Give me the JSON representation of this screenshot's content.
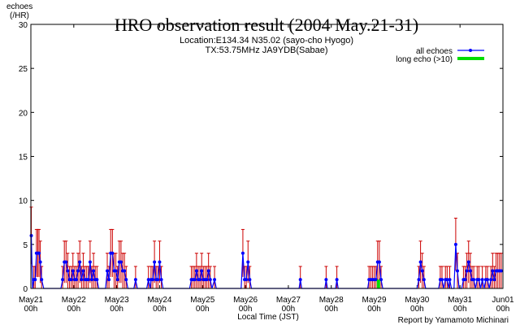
{
  "chart_data": {
    "type": "line",
    "title": "HRO observation result (2004 May.21-31)",
    "subtitle_1": "Location:E134.34 N35.02 (sayo-cho Hyogo)",
    "subtitle_2": "TX:53.75MHz JA9YDB(Sabae)",
    "ylabel_line1": "echoes",
    "ylabel_line2": "(/HR)",
    "xlabel": "Local Time (JST)",
    "credit": "Report by Yamamoto Michinari",
    "ylim": [
      0,
      30
    ],
    "yticks": [
      "0",
      "5",
      "10",
      "15",
      "20",
      "25",
      "30"
    ],
    "xlim_days": [
      0,
      11
    ],
    "xticks": [
      {
        "day": 0,
        "line1": "May21",
        "line2": "00h"
      },
      {
        "day": 1,
        "line1": "May22",
        "line2": "00h"
      },
      {
        "day": 2,
        "line1": "May23",
        "line2": "00h"
      },
      {
        "day": 3,
        "line1": "May24",
        "line2": "00h"
      },
      {
        "day": 4,
        "line1": "May25",
        "line2": "00h"
      },
      {
        "day": 5,
        "line1": "May26",
        "line2": "00h"
      },
      {
        "day": 6,
        "line1": "May27",
        "line2": "00h"
      },
      {
        "day": 7,
        "line1": "May28",
        "line2": "00h"
      },
      {
        "day": 8,
        "line1": "May29",
        "line2": "00h"
      },
      {
        "day": 9,
        "line1": "May30",
        "line2": "00h"
      },
      {
        "day": 10,
        "line1": "May31",
        "line2": "00h"
      },
      {
        "day": 11,
        "line1": "Jun01",
        "line2": "00h"
      }
    ],
    "legend": [
      {
        "name": "all echoes",
        "color": "#0000ff"
      },
      {
        "name": "long echo (>10)",
        "color": "#00dd00"
      }
    ],
    "legend_position": "top-right",
    "colors": {
      "line": "#0000ff",
      "error": "#cc0000",
      "long": "#00dd00",
      "axis": "#000000"
    },
    "series": [
      {
        "name": "all echoes",
        "points": [
          [
            0.01,
            6
          ],
          [
            0.04,
            0
          ],
          [
            0.07,
            1
          ],
          [
            0.1,
            1
          ],
          [
            0.13,
            4
          ],
          [
            0.16,
            4
          ],
          [
            0.19,
            4
          ],
          [
            0.22,
            3
          ],
          [
            0.25,
            1
          ],
          [
            0.3,
            0
          ],
          [
            0.7,
            0
          ],
          [
            0.74,
            1
          ],
          [
            0.78,
            3
          ],
          [
            0.82,
            3
          ],
          [
            0.86,
            2
          ],
          [
            0.9,
            1
          ],
          [
            0.94,
            1
          ],
          [
            0.98,
            2
          ],
          [
            1.02,
            1
          ],
          [
            1.06,
            1
          ],
          [
            1.1,
            2
          ],
          [
            1.14,
            3
          ],
          [
            1.18,
            1
          ],
          [
            1.22,
            2
          ],
          [
            1.26,
            1
          ],
          [
            1.3,
            1
          ],
          [
            1.34,
            1
          ],
          [
            1.38,
            3
          ],
          [
            1.42,
            1
          ],
          [
            1.46,
            2
          ],
          [
            1.5,
            1
          ],
          [
            1.54,
            1
          ],
          [
            1.58,
            0
          ],
          [
            1.74,
            0
          ],
          [
            1.78,
            2
          ],
          [
            1.82,
            1
          ],
          [
            1.86,
            4
          ],
          [
            1.9,
            4
          ],
          [
            1.94,
            2
          ],
          [
            1.98,
            2
          ],
          [
            2.02,
            1
          ],
          [
            2.06,
            3
          ],
          [
            2.1,
            3
          ],
          [
            2.14,
            2
          ],
          [
            2.18,
            2
          ],
          [
            2.22,
            1
          ],
          [
            2.26,
            0
          ],
          [
            2.4,
            0
          ],
          [
            2.44,
            1
          ],
          [
            2.48,
            0
          ],
          [
            2.7,
            0
          ],
          [
            2.74,
            1
          ],
          [
            2.78,
            0
          ],
          [
            2.8,
            1
          ],
          [
            2.84,
            1
          ],
          [
            2.88,
            3
          ],
          [
            2.92,
            1
          ],
          [
            2.96,
            1
          ],
          [
            3.0,
            3
          ],
          [
            3.04,
            1
          ],
          [
            3.08,
            0
          ],
          [
            3.7,
            0
          ],
          [
            3.74,
            1
          ],
          [
            3.78,
            1
          ],
          [
            3.82,
            1
          ],
          [
            3.86,
            2
          ],
          [
            3.9,
            1
          ],
          [
            3.94,
            1
          ],
          [
            3.98,
            2
          ],
          [
            4.02,
            1
          ],
          [
            4.06,
            1
          ],
          [
            4.1,
            1
          ],
          [
            4.14,
            2
          ],
          [
            4.18,
            1
          ],
          [
            4.22,
            0
          ],
          [
            4.28,
            1
          ],
          [
            4.32,
            0
          ],
          [
            4.9,
            0
          ],
          [
            4.94,
            4
          ],
          [
            4.98,
            1
          ],
          [
            5.02,
            1
          ],
          [
            5.06,
            3
          ],
          [
            5.1,
            1
          ],
          [
            5.14,
            0
          ],
          [
            6.25,
            0
          ],
          [
            6.28,
            1
          ],
          [
            6.31,
            0
          ],
          [
            6.85,
            0
          ],
          [
            6.88,
            1
          ],
          [
            6.91,
            0
          ],
          [
            7.1,
            0
          ],
          [
            7.13,
            1
          ],
          [
            7.16,
            0
          ],
          [
            7.85,
            0
          ],
          [
            7.88,
            1
          ],
          [
            7.92,
            1
          ],
          [
            7.96,
            1
          ],
          [
            8.0,
            1
          ],
          [
            8.04,
            1
          ],
          [
            8.08,
            3
          ],
          [
            8.12,
            3
          ],
          [
            8.16,
            1
          ],
          [
            8.2,
            0
          ],
          [
            9.0,
            0
          ],
          [
            9.04,
            1
          ],
          [
            9.08,
            3
          ],
          [
            9.12,
            2
          ],
          [
            9.16,
            1
          ],
          [
            9.2,
            0
          ],
          [
            9.5,
            0
          ],
          [
            9.54,
            1
          ],
          [
            9.58,
            1
          ],
          [
            9.62,
            0
          ],
          [
            9.66,
            1
          ],
          [
            9.7,
            1
          ],
          [
            9.74,
            0
          ],
          [
            9.76,
            1
          ],
          [
            9.8,
            0
          ],
          [
            9.86,
            0
          ],
          [
            9.9,
            5
          ],
          [
            9.94,
            2
          ],
          [
            9.98,
            0
          ],
          [
            10.04,
            0
          ],
          [
            10.08,
            1
          ],
          [
            10.12,
            1
          ],
          [
            10.16,
            2
          ],
          [
            10.2,
            3
          ],
          [
            10.24,
            2
          ],
          [
            10.28,
            1
          ],
          [
            10.32,
            1
          ],
          [
            10.36,
            0
          ],
          [
            10.4,
            1
          ],
          [
            10.44,
            1
          ],
          [
            10.48,
            0
          ],
          [
            10.52,
            1
          ],
          [
            10.56,
            0
          ],
          [
            10.6,
            1
          ],
          [
            10.64,
            1
          ],
          [
            10.68,
            0
          ],
          [
            10.72,
            1
          ],
          [
            10.76,
            2
          ],
          [
            10.8,
            1
          ],
          [
            10.84,
            2
          ],
          [
            10.88,
            2
          ],
          [
            10.92,
            2
          ],
          [
            10.96,
            2
          ]
        ]
      },
      {
        "name": "long echo (>10)",
        "points": [
          [
            8.1,
            1
          ]
        ]
      }
    ]
  }
}
